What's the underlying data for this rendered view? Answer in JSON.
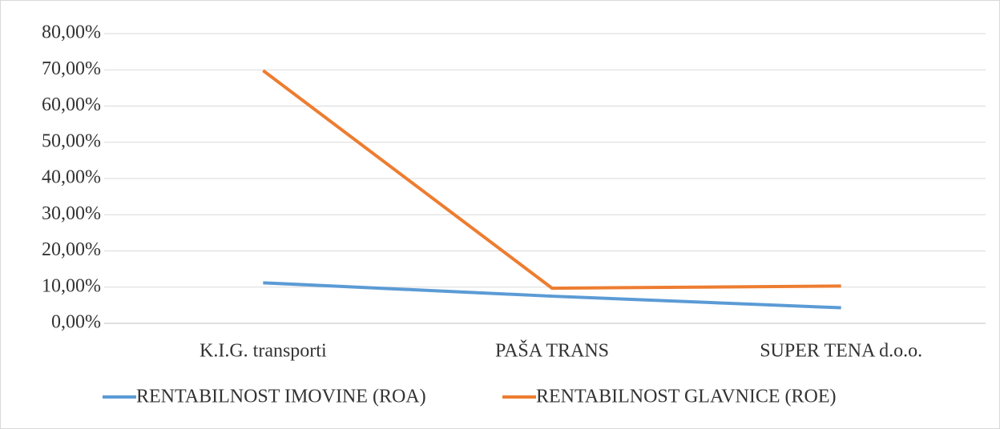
{
  "chart_data": {
    "type": "line",
    "categories": [
      "K.I.G. transporti",
      "PAŠA TRANS",
      "SUPER TENA d.o.o."
    ],
    "series": [
      {
        "name": "RENTABILNOST IMOVINE (ROA)",
        "color": "#5b9bd5",
        "values": [
          11.2,
          7.5,
          4.3
        ]
      },
      {
        "name": "RENTABILNOST GLAVNICE (ROE)",
        "color": "#ed7d31",
        "values": [
          69.8,
          9.7,
          10.3
        ]
      }
    ],
    "ylim": [
      0,
      80
    ],
    "yticks": [
      {
        "value": 0,
        "label": "0,00%"
      },
      {
        "value": 10,
        "label": "10,00%"
      },
      {
        "value": 20,
        "label": "20,00%"
      },
      {
        "value": 30,
        "label": "30,00%"
      },
      {
        "value": 40,
        "label": "40,00%"
      },
      {
        "value": 50,
        "label": "50,00%"
      },
      {
        "value": 60,
        "label": "60,00%"
      },
      {
        "value": 70,
        "label": "70,00%"
      },
      {
        "value": 80,
        "label": "80,00%"
      }
    ],
    "grid": true,
    "legend": "bottom"
  }
}
